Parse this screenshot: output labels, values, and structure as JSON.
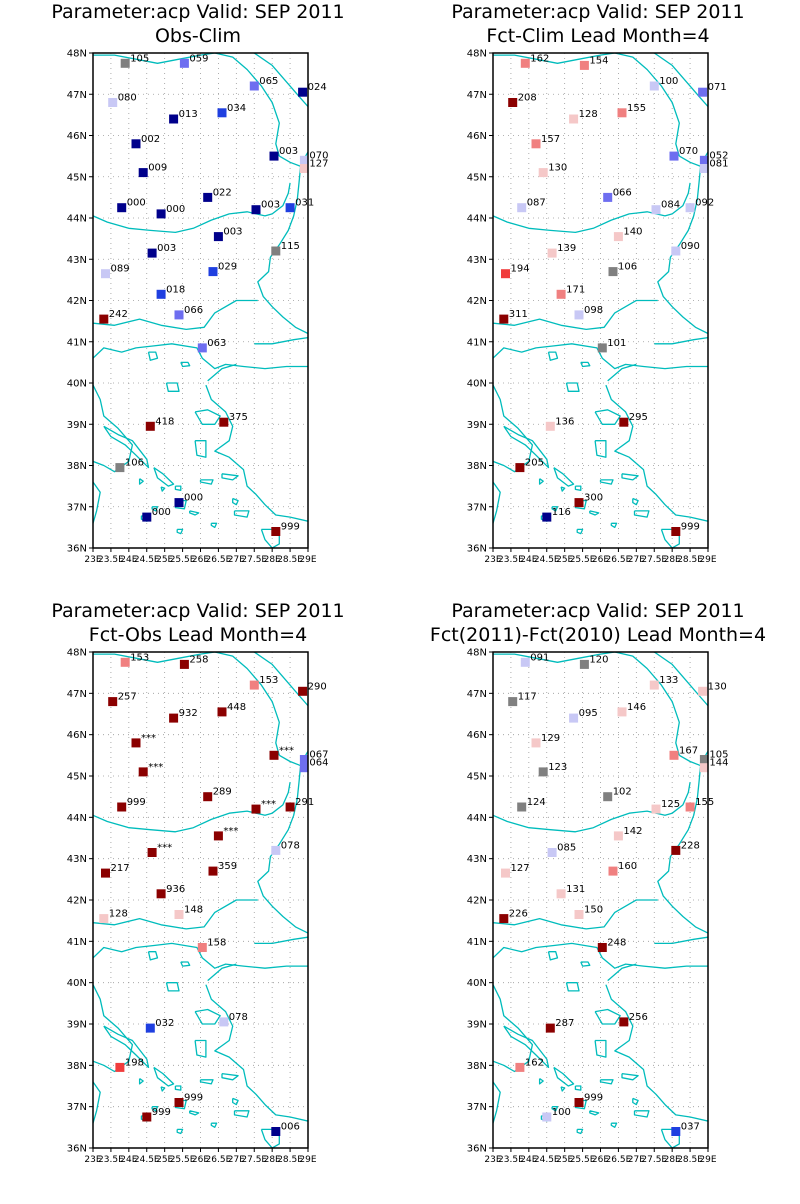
{
  "colors": {
    "coast": "#00bcbc",
    "grid": "#9a9a9a",
    "frame": "#000000",
    "scale": {
      "navy": "#00008b",
      "blue": "#1f3fe0",
      "mid_blue": "#6e6ef0",
      "light_blue": "#c8c8f5",
      "gray": "#808080",
      "light_pink": "#f5c8c8",
      "pink": "#f08080",
      "red": "#f03c3c",
      "dark_red": "#8b0000"
    }
  },
  "axes": {
    "lat_labels": [
      "48N",
      "47N",
      "46N",
      "45N",
      "44N",
      "43N",
      "42N",
      "41N",
      "40N",
      "39N",
      "38N",
      "37N",
      "36N"
    ],
    "lon_labels": [
      "23E",
      "23.5E",
      "24E",
      "24.5E",
      "25E",
      "25.5E",
      "26E",
      "26.5E",
      "27E",
      "27.5E",
      "28E",
      "28.5E",
      "29E"
    ]
  },
  "panels": [
    {
      "title1": "Parameter:acp Valid: SEP 2011",
      "title2": "Obs-Clim",
      "stations": [
        {
          "lon": 23.9,
          "lat": 47.75,
          "label": "105",
          "color": "gray"
        },
        {
          "lon": 25.55,
          "lat": 47.75,
          "label": "059",
          "color": "mid_blue"
        },
        {
          "lon": 27.5,
          "lat": 47.2,
          "label": "065",
          "color": "mid_blue"
        },
        {
          "lon": 28.85,
          "lat": 47.05,
          "label": "024",
          "color": "navy"
        },
        {
          "lon": 23.55,
          "lat": 46.8,
          "label": "080",
          "color": "light_blue"
        },
        {
          "lon": 25.25,
          "lat": 46.4,
          "label": "013",
          "color": "navy"
        },
        {
          "lon": 26.6,
          "lat": 46.55,
          "label": "034",
          "color": "blue"
        },
        {
          "lon": 24.2,
          "lat": 45.8,
          "label": "002",
          "color": "navy"
        },
        {
          "lon": 28.05,
          "lat": 45.5,
          "label": "003",
          "color": "navy"
        },
        {
          "lon": 28.9,
          "lat": 45.4,
          "label": "070",
          "color": "light_blue"
        },
        {
          "lon": 28.9,
          "lat": 45.2,
          "label": "127",
          "color": "light_pink"
        },
        {
          "lon": 24.4,
          "lat": 45.1,
          "label": "009",
          "color": "navy"
        },
        {
          "lon": 23.8,
          "lat": 44.25,
          "label": "000",
          "color": "navy"
        },
        {
          "lon": 24.9,
          "lat": 44.1,
          "label": "000",
          "color": "navy"
        },
        {
          "lon": 26.2,
          "lat": 44.5,
          "label": "022",
          "color": "navy"
        },
        {
          "lon": 27.55,
          "lat": 44.2,
          "label": "003",
          "color": "navy"
        },
        {
          "lon": 28.5,
          "lat": 44.25,
          "label": "031",
          "color": "blue"
        },
        {
          "lon": 24.65,
          "lat": 43.15,
          "label": "003",
          "color": "navy"
        },
        {
          "lon": 26.5,
          "lat": 43.55,
          "label": "003",
          "color": "navy"
        },
        {
          "lon": 28.1,
          "lat": 43.2,
          "label": "115",
          "color": "gray"
        },
        {
          "lon": 23.35,
          "lat": 42.65,
          "label": "089",
          "color": "light_blue"
        },
        {
          "lon": 26.35,
          "lat": 42.7,
          "label": "029",
          "color": "blue"
        },
        {
          "lon": 24.9,
          "lat": 42.15,
          "label": "018",
          "color": "blue"
        },
        {
          "lon": 25.4,
          "lat": 41.65,
          "label": "066",
          "color": "mid_blue"
        },
        {
          "lon": 23.3,
          "lat": 41.55,
          "label": "242",
          "color": "dark_red"
        },
        {
          "lon": 26.05,
          "lat": 40.85,
          "label": "063",
          "color": "mid_blue"
        },
        {
          "lon": 24.6,
          "lat": 38.95,
          "label": "418",
          "color": "dark_red"
        },
        {
          "lon": 26.65,
          "lat": 39.05,
          "label": "375",
          "color": "dark_red"
        },
        {
          "lon": 23.75,
          "lat": 37.95,
          "label": "106",
          "color": "gray"
        },
        {
          "lon": 25.4,
          "lat": 37.1,
          "label": "000",
          "color": "navy"
        },
        {
          "lon": 24.5,
          "lat": 36.75,
          "label": "000",
          "color": "navy"
        },
        {
          "lon": 28.1,
          "lat": 36.4,
          "label": "999",
          "color": "dark_red"
        }
      ]
    },
    {
      "title1": "Parameter:acp Valid: SEP 2011",
      "title2": "Fct-Clim Lead Month=4",
      "stations": [
        {
          "lon": 23.9,
          "lat": 47.75,
          "label": "162",
          "color": "pink"
        },
        {
          "lon": 25.55,
          "lat": 47.7,
          "label": "154",
          "color": "pink"
        },
        {
          "lon": 27.5,
          "lat": 47.2,
          "label": "100",
          "color": "light_blue"
        },
        {
          "lon": 28.85,
          "lat": 47.05,
          "label": "071",
          "color": "mid_blue"
        },
        {
          "lon": 23.55,
          "lat": 46.8,
          "label": "208",
          "color": "dark_red"
        },
        {
          "lon": 25.25,
          "lat": 46.4,
          "label": "128",
          "color": "light_pink"
        },
        {
          "lon": 26.6,
          "lat": 46.55,
          "label": "155",
          "color": "pink"
        },
        {
          "lon": 24.2,
          "lat": 45.8,
          "label": "157",
          "color": "pink"
        },
        {
          "lon": 28.05,
          "lat": 45.5,
          "label": "070",
          "color": "mid_blue"
        },
        {
          "lon": 28.9,
          "lat": 45.4,
          "label": "052",
          "color": "mid_blue"
        },
        {
          "lon": 28.9,
          "lat": 45.2,
          "label": "081",
          "color": "light_blue"
        },
        {
          "lon": 24.4,
          "lat": 45.1,
          "label": "130",
          "color": "light_pink"
        },
        {
          "lon": 23.8,
          "lat": 44.25,
          "label": "087",
          "color": "light_blue"
        },
        {
          "lon": 26.2,
          "lat": 44.5,
          "label": "066",
          "color": "mid_blue"
        },
        {
          "lon": 27.55,
          "lat": 44.2,
          "label": "084",
          "color": "light_blue"
        },
        {
          "lon": 28.5,
          "lat": 44.25,
          "label": "092",
          "color": "light_blue"
        },
        {
          "lon": 24.65,
          "lat": 43.15,
          "label": "139",
          "color": "light_pink"
        },
        {
          "lon": 26.5,
          "lat": 43.55,
          "label": "140",
          "color": "light_pink"
        },
        {
          "lon": 28.1,
          "lat": 43.2,
          "label": "090",
          "color": "light_blue"
        },
        {
          "lon": 23.35,
          "lat": 42.65,
          "label": "194",
          "color": "red"
        },
        {
          "lon": 26.35,
          "lat": 42.7,
          "label": "106",
          "color": "gray"
        },
        {
          "lon": 24.9,
          "lat": 42.15,
          "label": "171",
          "color": "pink"
        },
        {
          "lon": 25.4,
          "lat": 41.65,
          "label": "098",
          "color": "light_blue"
        },
        {
          "lon": 23.3,
          "lat": 41.55,
          "label": "311",
          "color": "dark_red"
        },
        {
          "lon": 26.05,
          "lat": 40.85,
          "label": "101",
          "color": "gray"
        },
        {
          "lon": 24.6,
          "lat": 38.95,
          "label": "136",
          "color": "light_pink"
        },
        {
          "lon": 26.65,
          "lat": 39.05,
          "label": "295",
          "color": "dark_red"
        },
        {
          "lon": 23.75,
          "lat": 37.95,
          "label": "205",
          "color": "dark_red"
        },
        {
          "lon": 25.4,
          "lat": 37.1,
          "label": "300",
          "color": "dark_red"
        },
        {
          "lon": 24.5,
          "lat": 36.75,
          "label": "116",
          "color": "navy"
        },
        {
          "lon": 28.1,
          "lat": 36.4,
          "label": "999",
          "color": "dark_red"
        }
      ]
    },
    {
      "title1": "Parameter:acp Valid: SEP 2011",
      "title2": "Fct-Obs Lead Month=4",
      "stations": [
        {
          "lon": 23.9,
          "lat": 47.75,
          "label": "153",
          "color": "pink"
        },
        {
          "lon": 25.55,
          "lat": 47.7,
          "label": "258",
          "color": "dark_red"
        },
        {
          "lon": 27.5,
          "lat": 47.2,
          "label": "153",
          "color": "pink"
        },
        {
          "lon": 28.85,
          "lat": 47.05,
          "label": "290",
          "color": "dark_red"
        },
        {
          "lon": 23.55,
          "lat": 46.8,
          "label": "257",
          "color": "dark_red"
        },
        {
          "lon": 25.25,
          "lat": 46.4,
          "label": "932",
          "color": "dark_red"
        },
        {
          "lon": 26.6,
          "lat": 46.55,
          "label": "448",
          "color": "dark_red"
        },
        {
          "lon": 24.2,
          "lat": 45.8,
          "label": "***",
          "color": "dark_red"
        },
        {
          "lon": 28.05,
          "lat": 45.5,
          "label": "***",
          "color": "dark_red"
        },
        {
          "lon": 28.9,
          "lat": 45.4,
          "label": "067",
          "color": "mid_blue"
        },
        {
          "lon": 28.9,
          "lat": 45.2,
          "label": "064",
          "color": "mid_blue"
        },
        {
          "lon": 24.4,
          "lat": 45.1,
          "label": "***",
          "color": "dark_red"
        },
        {
          "lon": 23.8,
          "lat": 44.25,
          "label": "999",
          "color": "dark_red"
        },
        {
          "lon": 26.2,
          "lat": 44.5,
          "label": "289",
          "color": "dark_red"
        },
        {
          "lon": 27.55,
          "lat": 44.2,
          "label": "***",
          "color": "dark_red"
        },
        {
          "lon": 28.5,
          "lat": 44.25,
          "label": "291",
          "color": "dark_red"
        },
        {
          "lon": 24.65,
          "lat": 43.15,
          "label": "***",
          "color": "dark_red"
        },
        {
          "lon": 26.5,
          "lat": 43.55,
          "label": "***",
          "color": "dark_red"
        },
        {
          "lon": 28.1,
          "lat": 43.2,
          "label": "078",
          "color": "light_blue"
        },
        {
          "lon": 23.35,
          "lat": 42.65,
          "label": "217",
          "color": "dark_red"
        },
        {
          "lon": 26.35,
          "lat": 42.7,
          "label": "359",
          "color": "dark_red"
        },
        {
          "lon": 24.9,
          "lat": 42.15,
          "label": "936",
          "color": "dark_red"
        },
        {
          "lon": 25.4,
          "lat": 41.65,
          "label": "148",
          "color": "light_pink"
        },
        {
          "lon": 23.3,
          "lat": 41.55,
          "label": "128",
          "color": "light_pink"
        },
        {
          "lon": 26.05,
          "lat": 40.85,
          "label": "158",
          "color": "pink"
        },
        {
          "lon": 24.6,
          "lat": 38.9,
          "label": "032",
          "color": "blue"
        },
        {
          "lon": 26.65,
          "lat": 39.05,
          "label": "078",
          "color": "light_blue"
        },
        {
          "lon": 23.75,
          "lat": 37.95,
          "label": "198",
          "color": "red"
        },
        {
          "lon": 25.4,
          "lat": 37.1,
          "label": "999",
          "color": "dark_red"
        },
        {
          "lon": 24.5,
          "lat": 36.75,
          "label": "999",
          "color": "dark_red"
        },
        {
          "lon": 28.1,
          "lat": 36.4,
          "label": "006",
          "color": "navy"
        }
      ]
    },
    {
      "title1": "Parameter:acp Valid: SEP 2011",
      "title2": "Fct(2011)-Fct(2010) Lead Month=4",
      "stations": [
        {
          "lon": 23.9,
          "lat": 47.75,
          "label": "091",
          "color": "light_blue"
        },
        {
          "lon": 25.55,
          "lat": 47.7,
          "label": "120",
          "color": "gray"
        },
        {
          "lon": 27.5,
          "lat": 47.2,
          "label": "133",
          "color": "light_pink"
        },
        {
          "lon": 28.85,
          "lat": 47.05,
          "label": "130",
          "color": "light_pink"
        },
        {
          "lon": 23.55,
          "lat": 46.8,
          "label": "117",
          "color": "gray"
        },
        {
          "lon": 25.25,
          "lat": 46.4,
          "label": "095",
          "color": "light_blue"
        },
        {
          "lon": 26.6,
          "lat": 46.55,
          "label": "146",
          "color": "light_pink"
        },
        {
          "lon": 24.2,
          "lat": 45.8,
          "label": "129",
          "color": "light_pink"
        },
        {
          "lon": 28.05,
          "lat": 45.5,
          "label": "167",
          "color": "pink"
        },
        {
          "lon": 28.9,
          "lat": 45.4,
          "label": "105",
          "color": "gray"
        },
        {
          "lon": 28.9,
          "lat": 45.2,
          "label": "144",
          "color": "light_pink"
        },
        {
          "lon": 24.4,
          "lat": 45.1,
          "label": "123",
          "color": "gray"
        },
        {
          "lon": 23.8,
          "lat": 44.25,
          "label": "124",
          "color": "gray"
        },
        {
          "lon": 26.2,
          "lat": 44.5,
          "label": "102",
          "color": "gray"
        },
        {
          "lon": 27.55,
          "lat": 44.2,
          "label": "125",
          "color": "light_pink"
        },
        {
          "lon": 28.5,
          "lat": 44.25,
          "label": "155",
          "color": "pink"
        },
        {
          "lon": 24.65,
          "lat": 43.15,
          "label": "085",
          "color": "light_blue"
        },
        {
          "lon": 26.5,
          "lat": 43.55,
          "label": "142",
          "color": "light_pink"
        },
        {
          "lon": 28.1,
          "lat": 43.2,
          "label": "228",
          "color": "dark_red"
        },
        {
          "lon": 23.35,
          "lat": 42.65,
          "label": "127",
          "color": "light_pink"
        },
        {
          "lon": 26.35,
          "lat": 42.7,
          "label": "160",
          "color": "pink"
        },
        {
          "lon": 24.9,
          "lat": 42.15,
          "label": "131",
          "color": "light_pink"
        },
        {
          "lon": 25.4,
          "lat": 41.65,
          "label": "150",
          "color": "light_pink"
        },
        {
          "lon": 23.3,
          "lat": 41.55,
          "label": "226",
          "color": "dark_red"
        },
        {
          "lon": 26.05,
          "lat": 40.85,
          "label": "248",
          "color": "dark_red"
        },
        {
          "lon": 24.6,
          "lat": 38.9,
          "label": "287",
          "color": "dark_red"
        },
        {
          "lon": 26.65,
          "lat": 39.05,
          "label": "256",
          "color": "dark_red"
        },
        {
          "lon": 23.75,
          "lat": 37.95,
          "label": "162",
          "color": "pink"
        },
        {
          "lon": 25.4,
          "lat": 37.1,
          "label": "999",
          "color": "dark_red"
        },
        {
          "lon": 24.5,
          "lat": 36.75,
          "label": "100",
          "color": "light_blue"
        },
        {
          "lon": 28.1,
          "lat": 36.4,
          "label": "037",
          "color": "blue"
        }
      ]
    }
  ]
}
